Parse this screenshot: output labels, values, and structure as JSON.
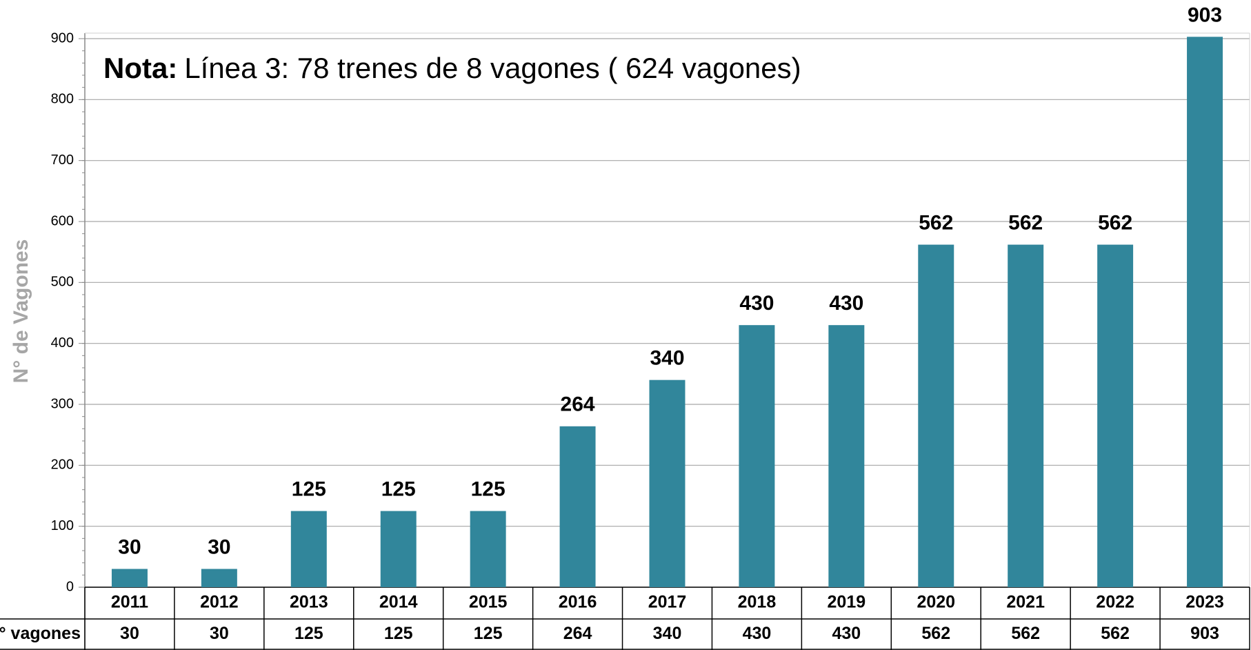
{
  "chart_data": {
    "type": "bar",
    "note_label": "Nota:",
    "note_text": "Línea 3: 78 trenes de 8 vagones ( 624 vagones)",
    "ylabel": "N° de Vagones",
    "table_row_label": "N° vagones",
    "categories": [
      "2011",
      "2012",
      "2013",
      "2014",
      "2015",
      "2016",
      "2017",
      "2018",
      "2019",
      "2020",
      "2021",
      "2022",
      "2023"
    ],
    "values": [
      30,
      30,
      125,
      125,
      125,
      264,
      340,
      430,
      430,
      562,
      562,
      562,
      903
    ],
    "color": "#31869b",
    "ylim": [
      0,
      900
    ],
    "yticks": [
      0,
      100,
      200,
      300,
      400,
      500,
      600,
      700,
      800,
      900
    ],
    "grid": true
  }
}
